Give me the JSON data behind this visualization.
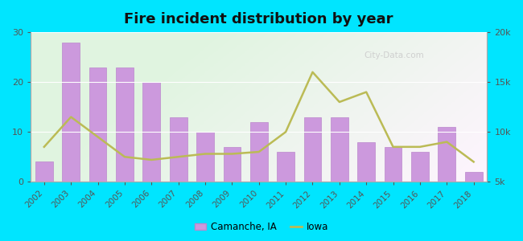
{
  "title": "Fire incident distribution by year",
  "years": [
    2002,
    2003,
    2004,
    2005,
    2006,
    2007,
    2008,
    2009,
    2010,
    2011,
    2012,
    2013,
    2014,
    2015,
    2016,
    2017,
    2018
  ],
  "bar_values": [
    4,
    28,
    23,
    23,
    20,
    13,
    10,
    7,
    12,
    6,
    13,
    13,
    8,
    7,
    6,
    11,
    2
  ],
  "iowa_values": [
    8500,
    11500,
    9500,
    7500,
    7200,
    7500,
    7800,
    7800,
    8000,
    10000,
    16000,
    13000,
    14000,
    8500,
    8500,
    9000,
    7000
  ],
  "bar_color": "#cc99dd",
  "bar_edge_color": "#bb88cc",
  "line_color": "#bbbb55",
  "outer_bg": "#00e5ff",
  "left_ylim": [
    0,
    30
  ],
  "right_ylim": [
    5000,
    20000
  ],
  "left_yticks": [
    0,
    10,
    20,
    30
  ],
  "right_yticks": [
    5000,
    10000,
    15000,
    20000
  ],
  "right_yticklabels": [
    "5k",
    "10k",
    "15k",
    "20k"
  ],
  "legend_camanche": "Camanche, IA",
  "legend_iowa": "Iowa",
  "watermark": "City-Data.com"
}
